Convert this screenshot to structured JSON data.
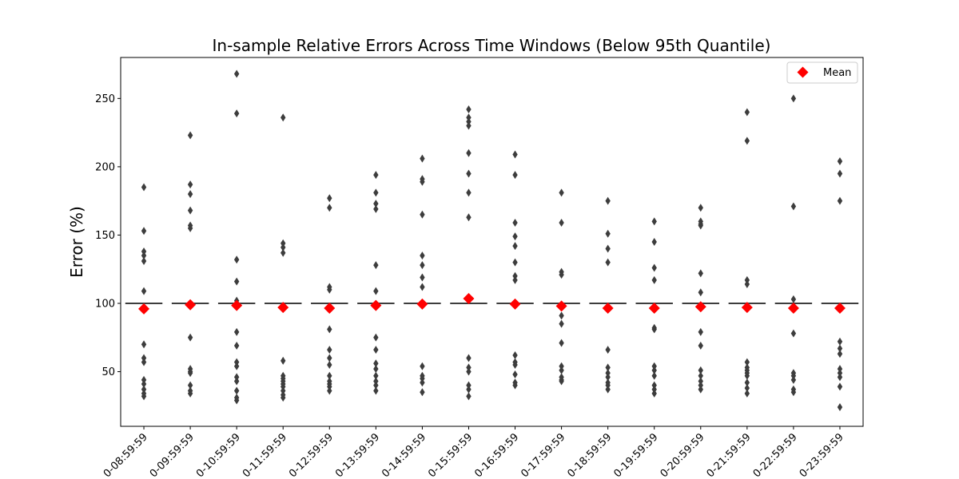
{
  "chart_data": {
    "type": "scatter",
    "title": "In-sample Relative Errors Across Time Windows (Below 95th Quantile)",
    "xlabel": "",
    "ylabel": "Error (%)",
    "ylim": [
      10,
      280
    ],
    "yticks": [
      50,
      100,
      150,
      200,
      250
    ],
    "legend": {
      "placement": "top-right",
      "entries": [
        "Mean"
      ]
    },
    "colors": {
      "mean_marker": "#ff0000",
      "outlier": "#3d3d3d",
      "box_line": "#3d3d3d"
    },
    "marker_names": {
      "mean": "red-diamond",
      "outlier": "dark-diamond"
    },
    "categories": [
      "0-08:59:59",
      "0-09:59:59",
      "0-10:59:59",
      "0-11:59:59",
      "0-12:59:59",
      "0-13:59:59",
      "0-14:59:59",
      "0-15:59:59",
      "0-16:59:59",
      "0-17:59:59",
      "0-18:59:59",
      "0-19:59:59",
      "0-20:59:59",
      "0-21:59:59",
      "0-22:59:59",
      "0-23:59:59"
    ],
    "median": [
      100,
      100,
      100,
      100,
      100,
      100,
      100,
      100,
      100,
      100,
      100,
      100,
      100,
      100,
      100,
      100
    ],
    "mean": [
      96,
      99,
      98.5,
      97,
      96.5,
      98.5,
      99.5,
      103.5,
      99.5,
      98,
      96.5,
      96.5,
      97.5,
      97,
      96.5,
      96.5
    ],
    "outliers": [
      [
        185,
        153,
        138,
        135,
        131,
        109,
        70,
        60,
        57,
        44,
        41,
        37,
        34,
        32
      ],
      [
        223,
        187,
        180,
        168,
        157,
        155,
        75,
        52,
        50,
        49,
        40,
        36,
        34
      ],
      [
        268,
        239,
        132,
        116,
        102,
        79,
        69,
        57,
        54,
        46,
        43,
        36,
        31,
        29
      ],
      [
        236,
        144,
        141,
        137,
        58,
        47,
        45,
        43,
        41,
        39,
        36,
        33,
        31
      ],
      [
        177,
        170,
        112,
        110,
        81,
        66,
        60,
        55,
        47,
        43,
        41,
        39,
        36
      ],
      [
        194,
        181,
        173,
        169,
        128,
        109,
        75,
        66,
        56,
        52,
        47,
        43,
        40,
        36
      ],
      [
        206,
        191,
        189,
        165,
        135,
        128,
        119,
        112,
        54,
        47,
        45,
        42,
        35
      ],
      [
        242,
        236,
        233,
        230,
        210,
        195,
        181,
        163,
        60,
        53,
        50,
        40,
        37,
        32
      ],
      [
        209,
        194,
        159,
        149,
        142,
        130,
        120,
        117,
        62,
        57,
        55,
        48,
        42,
        40
      ],
      [
        181,
        159,
        123,
        121,
        91,
        85,
        71,
        54,
        51,
        46,
        44,
        43
      ],
      [
        175,
        151,
        140,
        130,
        66,
        53,
        49,
        46,
        42,
        40,
        37
      ],
      [
        160,
        145,
        126,
        117,
        82,
        81,
        54,
        51,
        47,
        40,
        37,
        34
      ],
      [
        170,
        160,
        158,
        157,
        122,
        108,
        79,
        69,
        51,
        47,
        43,
        40,
        37
      ],
      [
        240,
        219,
        117,
        114,
        57,
        53,
        51,
        49,
        47,
        42,
        38,
        34
      ],
      [
        250,
        171,
        103,
        78,
        49,
        47,
        44,
        37,
        35
      ],
      [
        204,
        195,
        175,
        72,
        67,
        63,
        52,
        49,
        46,
        39,
        24
      ]
    ]
  }
}
